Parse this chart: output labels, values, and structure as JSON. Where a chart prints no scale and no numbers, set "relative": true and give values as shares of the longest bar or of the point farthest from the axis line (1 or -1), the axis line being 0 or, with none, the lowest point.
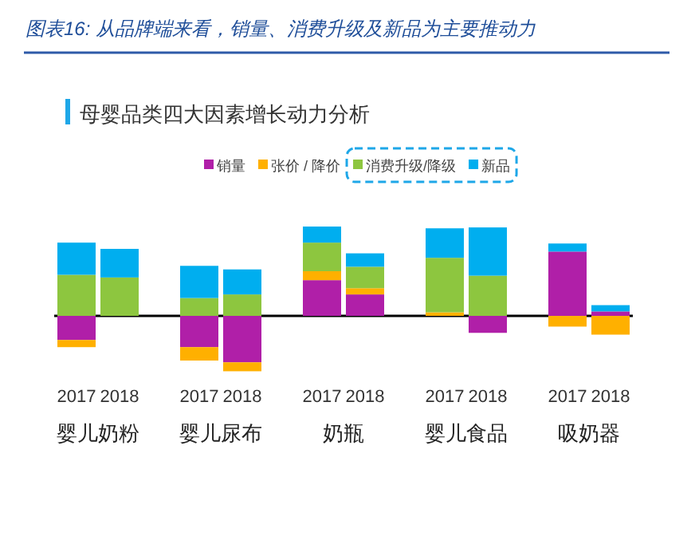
{
  "chart_data": {
    "type": "bar",
    "stacked": true,
    "relative": true,
    "legend": "top right",
    "title": "图表16: 从品牌端来看，销量、消费升级及新品为主要推动力",
    "subtitle": "母婴品类四大因素增长动力分析",
    "categories": [
      "2017",
      "2018",
      "2017",
      "2018",
      "2017",
      "2018",
      "2017",
      "2018",
      "2017",
      "2018"
    ],
    "annotations": [
      "婴儿奶粉",
      "婴儿尿布",
      "奶瓶",
      "婴儿食品",
      "吸奶器"
    ],
    "series": [
      {
        "name": "销量",
        "color": "#b01fa8",
        "values": [
          -0.27,
          0,
          -0.35,
          -0.52,
          0.4,
          0.24,
          0,
          -0.19,
          0.72,
          0.05
        ]
      },
      {
        "name": "张价 / 降价",
        "color": "#ffb000",
        "values": [
          -0.08,
          0,
          -0.15,
          -0.1,
          0.1,
          0.07,
          0.04,
          0,
          -0.12,
          -0.21
        ]
      },
      {
        "name": "消费升级/降级",
        "color": "#8dc63f",
        "values": [
          0.46,
          0.43,
          0.2,
          0.24,
          0.32,
          0.24,
          0.61,
          0.45,
          0,
          0
        ]
      },
      {
        "name": "新品",
        "color": "#00aeef",
        "values": [
          0.36,
          0.32,
          0.36,
          0.28,
          0.18,
          0.15,
          0.33,
          0.54,
          0.09,
          0.07
        ]
      }
    ]
  }
}
